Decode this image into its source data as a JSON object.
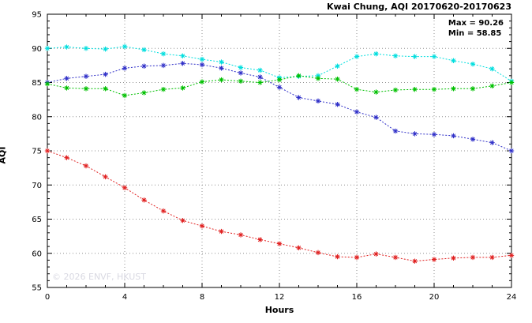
{
  "header": {
    "title": "Kwai Chung, AQI 20170620-20170623"
  },
  "annotations": {
    "max_label": "Max = 90.26",
    "min_label": "Min = 58.85"
  },
  "watermark": "© 2026 ENVF, HKUST",
  "chart_data": {
    "type": "line",
    "title": "Kwai Chung, AQI 20170620-20170623",
    "xlabel": "Hours",
    "ylabel": "AQI",
    "xlim": [
      0,
      24
    ],
    "ylim": [
      55,
      95
    ],
    "xticks": [
      0,
      4,
      8,
      12,
      16,
      20,
      24
    ],
    "yticks": [
      55,
      60,
      65,
      70,
      75,
      80,
      85,
      90,
      95
    ],
    "grid": true,
    "legend": "none",
    "max": 90.26,
    "min": 58.85,
    "x": [
      0,
      1,
      2,
      3,
      4,
      5,
      6,
      7,
      8,
      9,
      10,
      11,
      12,
      13,
      14,
      15,
      16,
      17,
      18,
      19,
      20,
      21,
      22,
      23,
      24
    ],
    "series": [
      {
        "name": "cyan",
        "color": "#00dede",
        "values": [
          90.0,
          90.2,
          90.0,
          89.9,
          90.26,
          89.8,
          89.2,
          88.9,
          88.4,
          88.0,
          87.2,
          86.8,
          85.7,
          85.9,
          86.0,
          87.4,
          88.8,
          89.2,
          88.9,
          88.8,
          88.8,
          88.2,
          87.7,
          87.0,
          85.2
        ]
      },
      {
        "name": "blue",
        "color": "#3030c8",
        "values": [
          85.0,
          85.6,
          85.9,
          86.2,
          87.1,
          87.4,
          87.5,
          87.8,
          87.6,
          87.1,
          86.4,
          85.8,
          84.3,
          82.8,
          82.3,
          81.8,
          80.7,
          79.9,
          77.9,
          77.5,
          77.4,
          77.2,
          76.7,
          76.2,
          75.0
        ]
      },
      {
        "name": "green",
        "color": "#00c000",
        "values": [
          84.8,
          84.2,
          84.1,
          84.1,
          83.1,
          83.5,
          84.0,
          84.2,
          85.1,
          85.4,
          85.2,
          85.0,
          85.4,
          86.0,
          85.6,
          85.5,
          84.0,
          83.6,
          83.9,
          84.0,
          84.0,
          84.1,
          84.1,
          84.5,
          85.0
        ]
      },
      {
        "name": "red",
        "color": "#e02020",
        "values": [
          75.0,
          74.0,
          72.8,
          71.2,
          69.6,
          67.8,
          66.2,
          64.8,
          64.0,
          63.2,
          62.7,
          62.0,
          61.4,
          60.8,
          60.1,
          59.5,
          59.4,
          59.9,
          59.4,
          58.85,
          59.1,
          59.3,
          59.4,
          59.4,
          59.7
        ]
      }
    ]
  }
}
